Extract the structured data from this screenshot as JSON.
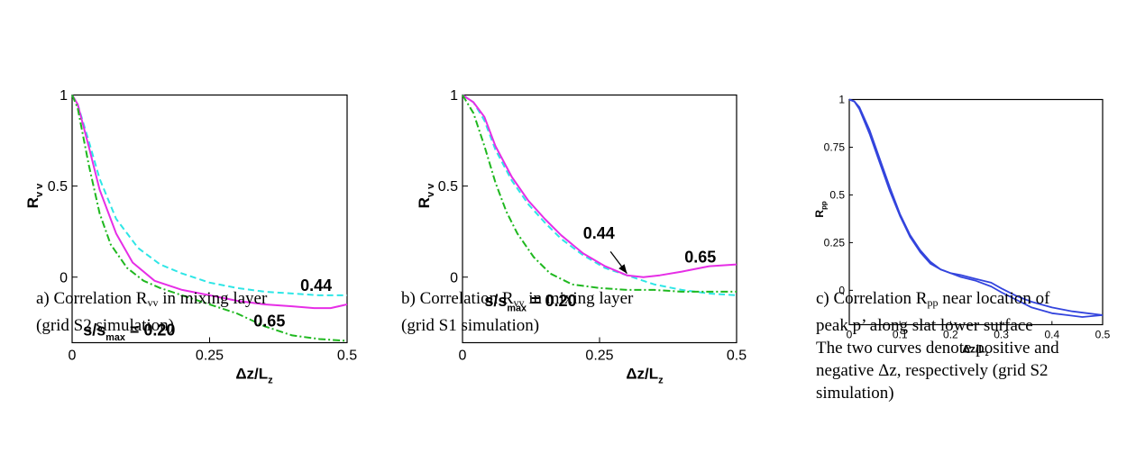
{
  "chart_data": [
    {
      "type": "line",
      "panel": "a",
      "xlabel": "Δz/L",
      "xlabel_sub": "z",
      "ylabel": "R",
      "ylabel_sub": "v v",
      "xlim": [
        0,
        0.5
      ],
      "ylim": [
        -0.36,
        1.0
      ],
      "xticks": [
        0,
        0.25,
        0.5
      ],
      "xtick_labels": [
        "0",
        "0.25",
        "0.5"
      ],
      "yticks": [
        0,
        0.5,
        1
      ],
      "ytick_labels": [
        "0",
        "0.5",
        "1"
      ],
      "grid": false,
      "series": [
        {
          "name": "0.44",
          "color": "#2ee6e6",
          "dash": "dashed",
          "x": [
            0,
            0.01,
            0.03,
            0.05,
            0.08,
            0.12,
            0.16,
            0.2,
            0.25,
            0.3,
            0.35,
            0.4,
            0.45,
            0.5
          ],
          "y": [
            1.0,
            0.95,
            0.75,
            0.54,
            0.32,
            0.16,
            0.07,
            0.02,
            -0.03,
            -0.06,
            -0.08,
            -0.09,
            -0.1,
            -0.1
          ]
        },
        {
          "name": "0.65",
          "color": "#e62ee6",
          "dash": "solid",
          "x": [
            0,
            0.01,
            0.03,
            0.05,
            0.08,
            0.11,
            0.15,
            0.2,
            0.25,
            0.3,
            0.35,
            0.4,
            0.44,
            0.47,
            0.5
          ],
          "y": [
            1.0,
            0.95,
            0.72,
            0.48,
            0.24,
            0.08,
            -0.02,
            -0.07,
            -0.1,
            -0.13,
            -0.15,
            -0.16,
            -0.17,
            -0.17,
            -0.15
          ]
        },
        {
          "name": "s/smax = 0.20",
          "color": "#1fb81f",
          "dash": "dashdot",
          "x": [
            0,
            0.01,
            0.03,
            0.05,
            0.07,
            0.1,
            0.13,
            0.16,
            0.2,
            0.25,
            0.3,
            0.35,
            0.4,
            0.45,
            0.5
          ],
          "y": [
            1.0,
            0.93,
            0.62,
            0.35,
            0.18,
            0.05,
            -0.02,
            -0.06,
            -0.1,
            -0.15,
            -0.2,
            -0.27,
            -0.32,
            -0.34,
            -0.35
          ]
        }
      ],
      "annotations": [
        {
          "text": "0.44",
          "x": 0.415,
          "y": -0.075
        },
        {
          "text": "0.65",
          "x": 0.33,
          "y": -0.27
        },
        {
          "text": "s/s",
          "sub": "max",
          "tail": " = 0.20",
          "x": 0.02,
          "y": -0.32
        }
      ]
    },
    {
      "type": "line",
      "panel": "b",
      "xlabel": "Δz/L",
      "xlabel_sub": "z",
      "ylabel": "R",
      "ylabel_sub": "v v",
      "xlim": [
        0,
        0.5
      ],
      "ylim": [
        -0.36,
        1.0
      ],
      "xticks": [
        0,
        0.25,
        0.5
      ],
      "xtick_labels": [
        "0",
        "0.25",
        "0.5"
      ],
      "yticks": [
        0,
        0.5,
        1
      ],
      "ytick_labels": [
        "0",
        "0.5",
        "1"
      ],
      "grid": false,
      "series": [
        {
          "name": "0.44",
          "color": "#2ee6e6",
          "dash": "dashed",
          "x": [
            0,
            0.02,
            0.04,
            0.06,
            0.09,
            0.12,
            0.15,
            0.18,
            0.22,
            0.26,
            0.3,
            0.35,
            0.4,
            0.45,
            0.5
          ],
          "y": [
            1.0,
            0.96,
            0.86,
            0.7,
            0.53,
            0.4,
            0.3,
            0.21,
            0.12,
            0.05,
            0.01,
            -0.04,
            -0.07,
            -0.09,
            -0.1
          ]
        },
        {
          "name": "0.65",
          "color": "#e62ee6",
          "dash": "solid",
          "x": [
            0,
            0.02,
            0.04,
            0.06,
            0.09,
            0.12,
            0.15,
            0.18,
            0.22,
            0.26,
            0.3,
            0.33,
            0.36,
            0.4,
            0.45,
            0.5
          ],
          "y": [
            1.0,
            0.96,
            0.88,
            0.72,
            0.55,
            0.42,
            0.32,
            0.23,
            0.13,
            0.06,
            0.01,
            0.0,
            0.01,
            0.03,
            0.06,
            0.07
          ]
        },
        {
          "name": "s/smax = 0.20",
          "color": "#1fb81f",
          "dash": "dashdot",
          "x": [
            0,
            0.02,
            0.04,
            0.06,
            0.08,
            0.1,
            0.13,
            0.16,
            0.2,
            0.25,
            0.3,
            0.35,
            0.4,
            0.45,
            0.5
          ],
          "y": [
            1.0,
            0.9,
            0.72,
            0.52,
            0.36,
            0.24,
            0.11,
            0.02,
            -0.04,
            -0.06,
            -0.07,
            -0.07,
            -0.08,
            -0.08,
            -0.08
          ]
        }
      ],
      "annotations": [
        {
          "text": "0.44",
          "x": 0.22,
          "y": 0.21
        },
        {
          "text": "0.65",
          "x": 0.405,
          "y": 0.08
        },
        {
          "text": "s/s",
          "sub": "max",
          "tail": " = 0.20",
          "x": 0.04,
          "y": -0.16
        }
      ],
      "arrow": {
        "from": [
          0.27,
          0.14
        ],
        "to": [
          0.3,
          0.02
        ]
      }
    },
    {
      "type": "line",
      "panel": "c",
      "xlabel": "Δz/L",
      "xlabel_sub": "z",
      "ylabel": "R",
      "ylabel_sub": "pp",
      "xlim": [
        0,
        0.5
      ],
      "ylim": [
        -0.18,
        1.0
      ],
      "xticks": [
        0,
        0.1,
        0.2,
        0.3,
        0.4,
        0.5
      ],
      "xtick_labels": [
        "0",
        "0.1",
        "0.2",
        "0.3",
        "0.4",
        "0.5"
      ],
      "yticks": [
        0,
        0.25,
        0.5,
        0.75,
        1
      ],
      "ytick_labels": [
        "0",
        "0.25",
        "0.5",
        "0.75",
        "1"
      ],
      "grid": false,
      "series": [
        {
          "name": "",
          "color": "#3344dd",
          "dash": "solid",
          "x": [
            0,
            0.01,
            0.02,
            0.04,
            0.06,
            0.08,
            0.1,
            0.12,
            0.14,
            0.16,
            0.18,
            0.2,
            0.22,
            0.25,
            0.28,
            0.3,
            0.33,
            0.36,
            0.4,
            0.43,
            0.46,
            0.5
          ],
          "y": [
            1.0,
            0.99,
            0.95,
            0.82,
            0.67,
            0.52,
            0.39,
            0.28,
            0.2,
            0.14,
            0.11,
            0.09,
            0.07,
            0.05,
            0.02,
            -0.01,
            -0.05,
            -0.09,
            -0.12,
            -0.13,
            -0.14,
            -0.13
          ]
        },
        {
          "name": "",
          "color": "#3344dd",
          "dash": "solid",
          "x": [
            0,
            0.01,
            0.02,
            0.04,
            0.06,
            0.08,
            0.1,
            0.12,
            0.14,
            0.16,
            0.18,
            0.2,
            0.22,
            0.25,
            0.28,
            0.3,
            0.33,
            0.36,
            0.4,
            0.44,
            0.47,
            0.5
          ],
          "y": [
            1.0,
            0.99,
            0.96,
            0.84,
            0.69,
            0.54,
            0.4,
            0.29,
            0.21,
            0.15,
            0.11,
            0.09,
            0.08,
            0.06,
            0.04,
            0.01,
            -0.03,
            -0.06,
            -0.09,
            -0.11,
            -0.12,
            -0.13
          ]
        }
      ],
      "annotations": []
    }
  ],
  "captions": {
    "a": {
      "prefix": "a) Correlation R",
      "sub": "vv",
      "suffix": " in mixing layer\n(grid S2 simulation)"
    },
    "b": {
      "prefix": "b) Correlation R",
      "sub": "vv",
      "suffix": " in mixing layer\n(grid S1 simulation)"
    },
    "c": {
      "prefix": "c) Correlation R",
      "sub": "pp",
      "suffix": " near location of\npeak p’ along slat lower surface\nThe two curves denote positive and\nnegative Δz, respectively (grid S2\nsimulation)"
    }
  }
}
